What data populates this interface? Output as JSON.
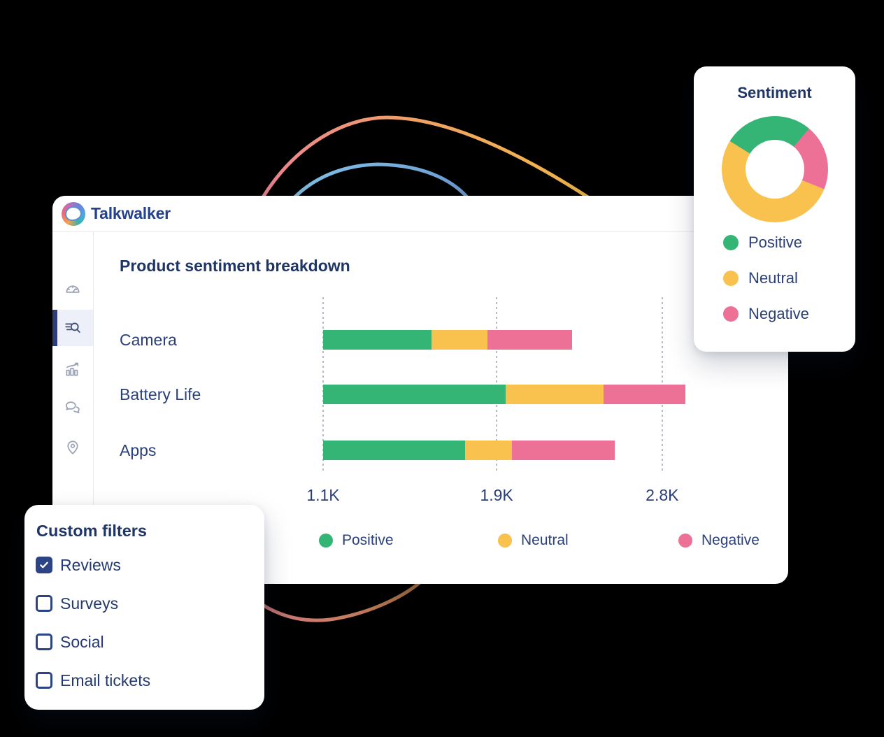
{
  "brand": {
    "name": "Talkwalker"
  },
  "colors": {
    "positive": "#34b576",
    "neutral": "#f9c14e",
    "negative": "#ed7097",
    "navy_text": "#2b4078",
    "title_navy": "#1f3566",
    "background": "#000000",
    "sidebar_active": "#2c3e7a"
  },
  "sidebar": {
    "items": [
      {
        "id": "dashboard",
        "icon": "speedometer-icon",
        "active": false
      },
      {
        "id": "search",
        "icon": "search-lines-icon",
        "active": true
      },
      {
        "id": "analytics",
        "icon": "chart-growth-icon",
        "active": false
      },
      {
        "id": "conversations",
        "icon": "chat-bubbles-icon",
        "active": false
      },
      {
        "id": "locations",
        "icon": "location-pin-icon",
        "active": false
      }
    ]
  },
  "product_chart": {
    "title": "Product sentiment breakdown",
    "chart_data": {
      "type": "bar",
      "orientation": "horizontal",
      "stacked": true,
      "grid": "dotted-vertical",
      "categories": [
        "Camera",
        "Battery Life",
        "Apps"
      ],
      "series": [
        {
          "name": "Positive",
          "color": "#34b576",
          "widths_pct": [
            29.9,
            50.4,
            39.2
          ],
          "approx_values_k": [
            0.84,
            1.41,
            1.1
          ]
        },
        {
          "name": "Neutral",
          "color": "#f9c14e",
          "widths_pct": [
            15.4,
            27.0,
            12.9
          ],
          "approx_values_k": [
            0.43,
            0.76,
            0.36
          ]
        },
        {
          "name": "Negative",
          "color": "#ed7097",
          "widths_pct": [
            23.4,
            22.6,
            28.4
          ],
          "approx_values_k": [
            0.65,
            0.63,
            0.79
          ]
        }
      ],
      "x_ticks": [
        {
          "label": "1.1K",
          "pos_pct": 0
        },
        {
          "label": "1.9K",
          "pos_pct": 47.9
        },
        {
          "label": "2.8K",
          "pos_pct": 93.6
        }
      ],
      "legend": [
        {
          "label": "Positive",
          "color": "#34b576"
        },
        {
          "label": "Neutral",
          "color": "#f9c14e"
        },
        {
          "label": "Negative",
          "color": "#ed7097"
        }
      ],
      "legend_position": "bottom"
    }
  },
  "sentiment_card": {
    "title": "Sentiment",
    "chart_data": {
      "type": "pie",
      "donut": true,
      "start_deg": -58,
      "slices": [
        {
          "label": "Positive",
          "color": "#34b576",
          "sweep_deg": 98,
          "pct": 27
        },
        {
          "label": "Negative",
          "color": "#ed7097",
          "sweep_deg": 72,
          "pct": 20
        },
        {
          "label": "Neutral",
          "color": "#f9c14e",
          "sweep_deg": 190,
          "pct": 53
        }
      ],
      "legend": [
        {
          "label": "Positive",
          "color": "#34b576"
        },
        {
          "label": "Neutral",
          "color": "#f9c14e"
        },
        {
          "label": "Negative",
          "color": "#ed7097"
        }
      ],
      "legend_position": "bottom"
    }
  },
  "filters_card": {
    "title": "Custom filters",
    "options": [
      {
        "label": "Reviews",
        "checked": true
      },
      {
        "label": "Surveys",
        "checked": false
      },
      {
        "label": "Social",
        "checked": false
      },
      {
        "label": "Email tickets",
        "checked": false
      }
    ]
  }
}
